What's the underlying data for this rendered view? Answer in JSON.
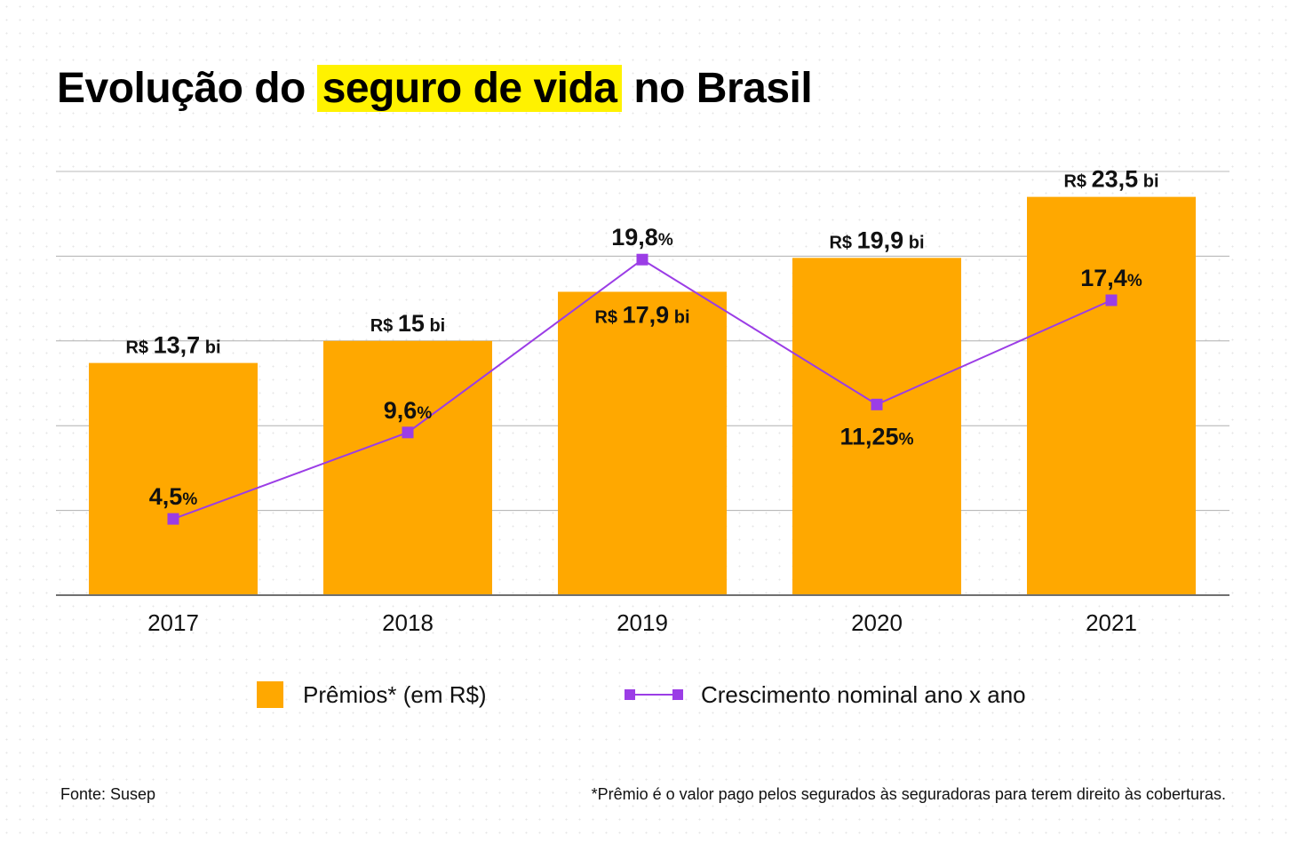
{
  "title": {
    "before": "Evolução do",
    "highlight": "seguro de vida",
    "after": "no Brasil"
  },
  "colors": {
    "bar": "#ffa800",
    "line": "#9b3de6",
    "highlight": "#fff200",
    "grid": "#b0b0b0",
    "axis": "#707070"
  },
  "chart_data": {
    "type": "bar+line",
    "title": "Evolução do seguro de vida no Brasil",
    "categories": [
      "2017",
      "2018",
      "2019",
      "2020",
      "2021"
    ],
    "series": [
      {
        "name": "Prêmios* (em R$)",
        "type": "bar",
        "unit": "R$ bi",
        "values": [
          13.7,
          15,
          17.9,
          19.9,
          23.5
        ],
        "labels": [
          {
            "prefix": "R$",
            "value": "13,7",
            "suffix": "bi"
          },
          {
            "prefix": "R$",
            "value": "15",
            "suffix": "bi"
          },
          {
            "prefix": "R$",
            "value": "17,9",
            "suffix": "bi"
          },
          {
            "prefix": "R$",
            "value": "19,9",
            "suffix": "bi"
          },
          {
            "prefix": "R$",
            "value": "23,5",
            "suffix": "bi"
          }
        ]
      },
      {
        "name": "Crescimento nominal ano x ano",
        "type": "line",
        "unit": "%",
        "values": [
          4.5,
          9.6,
          19.8,
          11.25,
          17.4
        ],
        "labels": [
          {
            "value": "4,5",
            "suffix": "%"
          },
          {
            "value": "9,6",
            "suffix": "%"
          },
          {
            "value": "19,8",
            "suffix": "%"
          },
          {
            "value": "11,25",
            "suffix": "%"
          },
          {
            "value": "17,4",
            "suffix": "%"
          }
        ]
      }
    ],
    "xlabel": "",
    "ylabel": "",
    "ylim": [
      0,
      25
    ],
    "gridlines": [
      5,
      10,
      15,
      20,
      25
    ],
    "grid": true,
    "legend": "bottom-center"
  },
  "legend": {
    "bar_label": "Prêmios* (em R$)",
    "line_label": "Crescimento nominal ano x ano"
  },
  "footer": {
    "source": "Fonte: Susep",
    "note": "*Prêmio é o valor pago pelos segurados às seguradoras para terem direito às coberturas."
  }
}
